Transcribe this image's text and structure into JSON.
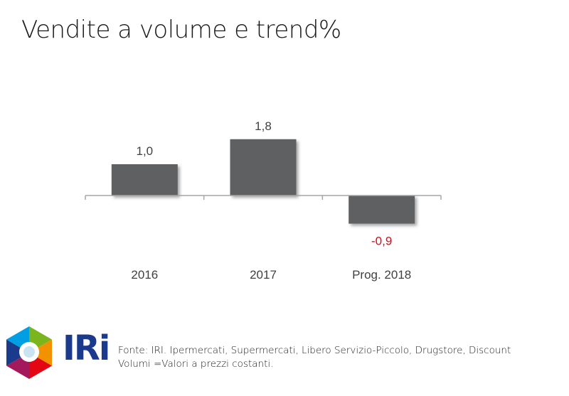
{
  "header": {
    "title": "Vendite a volume e trend%"
  },
  "chart_data": {
    "type": "bar",
    "title": "Vendite a volume e trend%",
    "categories": [
      "2016",
      "2017",
      "Prog. 2018"
    ],
    "values": [
      1.0,
      1.8,
      -0.9
    ],
    "value_labels": [
      "1,0",
      "1,8",
      "-0,9"
    ],
    "ylim": [
      -0.9,
      1.8
    ],
    "grid": false,
    "legend": "none"
  },
  "colors": {
    "bar": "#5f6062",
    "negative_label": "#e30613",
    "label": "#404040",
    "axis": "#a6a6a6"
  },
  "footer": {
    "brand": "IRi",
    "source_line1": "Fonte: IRI. Ipermercati, Supermercati, Libero Servizio-Piccolo, Drugstore, Discount",
    "source_line2": "Volumi =Valori a prezzi costanti."
  }
}
